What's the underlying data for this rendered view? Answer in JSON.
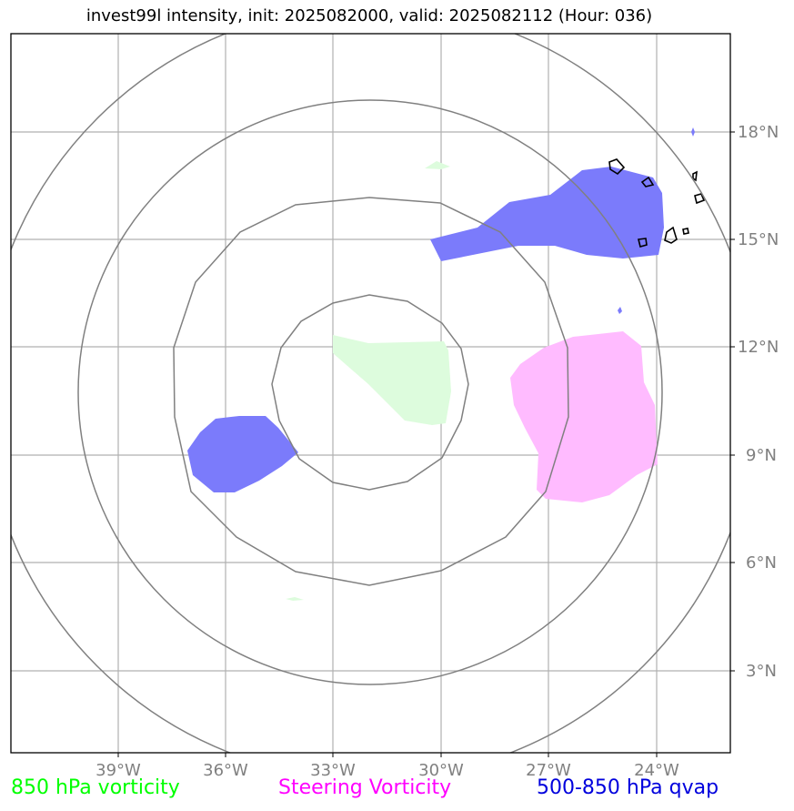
{
  "title": "invest99l intensity, init: 2025082000, valid: 2025082112 (Hour: 036)",
  "map": {
    "lon_range": [
      -42,
      -22
    ],
    "lat_range": [
      1,
      21
    ],
    "x_ticks": [
      "39°W",
      "36°W",
      "33°W",
      "30°W",
      "27°W",
      "24°W"
    ],
    "y_ticks": [
      "18°N",
      "15°N",
      "12°N",
      "9°N",
      "6°N",
      "3°N"
    ],
    "range_rings": "concentric rings centered near 33°W, 10.3°N",
    "features": [
      {
        "name": "850 hPa vorticity",
        "color": "#ddfcdd"
      },
      {
        "name": "Steering Vorticity",
        "color": "#ffbbff"
      },
      {
        "name": "500-850 hPa qvap",
        "color": "#7b7bfb"
      }
    ]
  },
  "legend": {
    "vorticity_850": {
      "label": "850 hPa vorticity",
      "color": "#00ff00"
    },
    "steering": {
      "label": "Steering Vorticity",
      "color": "#ff00ff"
    },
    "qvap": {
      "label": "500-850 hPa qvap",
      "color": "#0000dd"
    }
  }
}
